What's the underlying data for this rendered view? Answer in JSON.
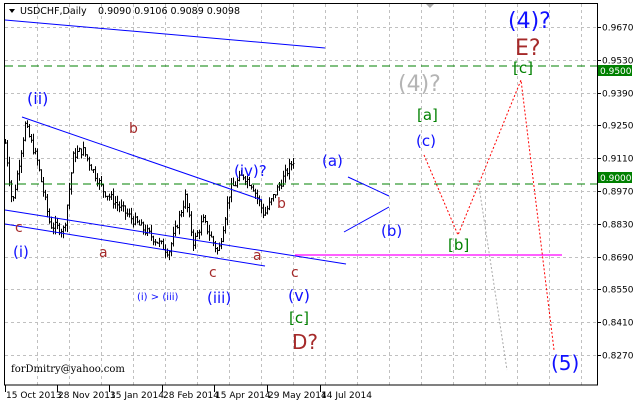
{
  "header": {
    "symbol": "USDCHF,Daily",
    "ohlc": "0.9090 0.9106 0.9089 0.9098"
  },
  "watermark": "forDmitry@yahoo.com",
  "colors": {
    "wave_blue": "#1010ff",
    "wave_brown": "#a52a2a",
    "wave_green": "#008000",
    "wave_gray": "#b4b4b4",
    "level_green": "#008000",
    "support_magenta": "#ff00ff",
    "forecast_red": "#ff0000",
    "candles": "#000000"
  },
  "chart_data": {
    "type": "bar",
    "subtype": "ohlc",
    "title": "USDCHF,Daily",
    "y_ticks": [
      "0.9670",
      "0.9530",
      "0.9390",
      "0.9250",
      "0.9110",
      "0.8970",
      "0.8830",
      "0.8690",
      "0.8550",
      "0.8410",
      "0.8270"
    ],
    "x_ticks": [
      "15 Oct 2013",
      "28 Nov 2013",
      "15 Jan 2014",
      "28 Feb 2014",
      "15 Apr 2014",
      "29 May 2014",
      "14 Jul 2014"
    ],
    "ylim": [
      0.815,
      0.978
    ],
    "grid": true,
    "price_path_waypoints": [
      [
        "15 Oct 2013",
        0.9175
      ],
      [
        "21 Oct 2013",
        0.891
      ],
      [
        "1 Nov 2013",
        0.9252
      ],
      [
        "11 Nov 2013",
        0.9102
      ],
      [
        "22 Nov 2013",
        0.8825
      ],
      [
        "4 Dec 2013",
        0.8804
      ],
      [
        "12 Dec 2013",
        0.9124
      ],
      [
        "20 Dec 2013",
        0.9145
      ],
      [
        "6 Jan 2014",
        0.8974
      ],
      [
        "27 Jan 2014",
        0.8868
      ],
      [
        "3 Mar 2014",
        0.871
      ],
      [
        "17 Mar 2014",
        0.8944
      ],
      [
        "24 Mar 2014",
        0.8748
      ],
      [
        "1 Apr 2014",
        0.8846
      ],
      [
        "14 Apr 2014",
        0.8705
      ],
      [
        "24 Apr 2014",
        0.8974
      ],
      [
        "5 May 2014",
        0.9038
      ],
      [
        "13 May 2014",
        0.8996
      ],
      [
        "23 May 2014",
        0.8868
      ],
      [
        "5 Jun 2014",
        0.8996
      ],
      [
        "18 Jun 2014",
        0.9111
      ]
    ],
    "levels": [
      {
        "price": "0.9500",
        "style": "dashed"
      },
      {
        "price": "0.9000",
        "style": "dashed"
      }
    ],
    "support_line": 0.87
  },
  "wave_labels": [
    {
      "text": "(ii)",
      "color": "blue"
    },
    {
      "text": "c",
      "color": "brown"
    },
    {
      "text": "(i)",
      "color": "blue"
    },
    {
      "text": "a",
      "color": "brown"
    },
    {
      "text": "b",
      "color": "brown"
    },
    {
      "text": "(i) > (iii)",
      "color": "blue"
    },
    {
      "text": "c",
      "color": "brown"
    },
    {
      "text": "(iii)",
      "color": "blue"
    },
    {
      "text": "(iv)?",
      "color": "blue"
    },
    {
      "text": "b",
      "color": "brown"
    },
    {
      "text": "a",
      "color": "brown"
    },
    {
      "text": "c",
      "color": "brown"
    },
    {
      "text": "(v)",
      "color": "blue"
    },
    {
      "text": "[c]",
      "color": "green"
    },
    {
      "text": "D?",
      "color": "brown"
    },
    {
      "text": "(a)",
      "color": "blue"
    },
    {
      "text": "(b)",
      "color": "blue"
    },
    {
      "text": "(c)",
      "color": "blue"
    },
    {
      "text": "[a]",
      "color": "green"
    },
    {
      "text": "(4)?",
      "color": "gray"
    },
    {
      "text": "[b]",
      "color": "green"
    },
    {
      "text": "(4)?",
      "color": "blue"
    },
    {
      "text": "E?",
      "color": "brown"
    },
    {
      "text": "[c]",
      "color": "green"
    },
    {
      "text": "(5)",
      "color": "blue"
    }
  ]
}
